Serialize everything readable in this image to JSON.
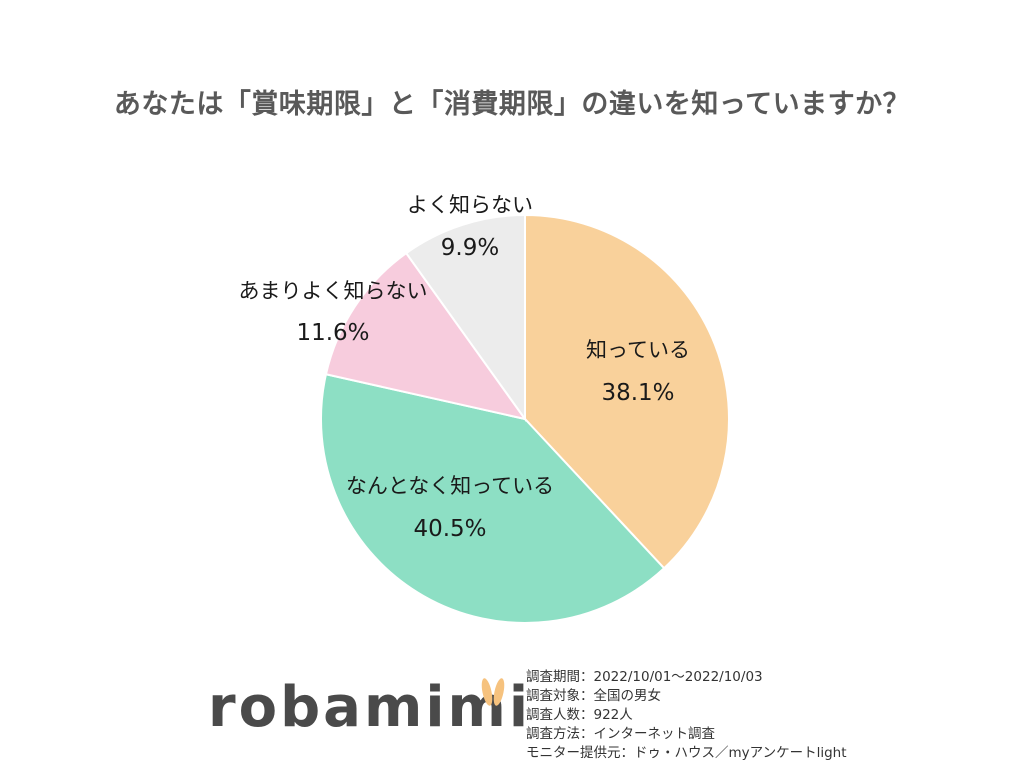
{
  "chart_data": {
    "type": "pie",
    "title": "あなたは「賞味期限」と「消費期限」の違いを知っていますか？",
    "slices": [
      {
        "label": "知っている",
        "value": 38.1,
        "value_label": "38.1%",
        "color": "#f9d19b"
      },
      {
        "label": "なんとなく知っている",
        "value": 40.5,
        "value_label": "40.5%",
        "color": "#8ddfc4"
      },
      {
        "label": "あまりよく知らない",
        "value": 11.6,
        "value_label": "11.6%",
        "color": "#f7ccdd"
      },
      {
        "label": "よく知らない",
        "value": 9.9,
        "value_label": "9.9%",
        "color": "#ececec"
      }
    ]
  },
  "logo": {
    "text": "robamimi",
    "ear_color": "#f6c27e"
  },
  "survey": [
    "調査期間：2022/10/01～2022/10/03",
    "調査対象：全国の男女",
    "調査人数：922人",
    "調査方法：インターネット調査",
    "モニター提供元：ドゥ・ハウス／myアンケートlight"
  ]
}
